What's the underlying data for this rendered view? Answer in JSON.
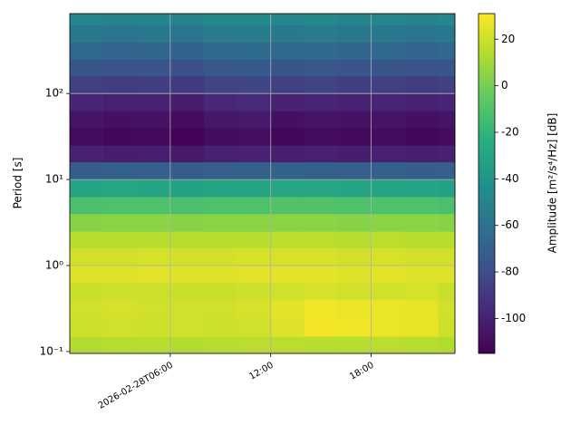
{
  "chart_data": {
    "type": "heatmap",
    "ylabel": "Period [s]",
    "colorbar_label": "Amplitude [m²/s⁴/Hz] [dB]",
    "x": [
      0,
      2,
      4,
      6,
      8,
      10,
      12,
      14,
      16,
      18,
      20,
      22,
      23
    ],
    "y": [
      0.095,
      0.15,
      0.25,
      0.4,
      0.63,
      1,
      1.6,
      2.5,
      4,
      6.3,
      10,
      16,
      25,
      40,
      63,
      100,
      160,
      250,
      400,
      630,
      850
    ],
    "xlim": [
      0,
      23
    ],
    "ylim": [
      0.095,
      850
    ],
    "log_y": true,
    "grid": true,
    "xticks": [
      {
        "value": 6,
        "label": "2026-02-28T06:00"
      },
      {
        "value": 12,
        "label": "12:00"
      },
      {
        "value": 18,
        "label": "18:00"
      }
    ],
    "yticks": [
      {
        "value": 0.1,
        "label": "10⁻¹"
      },
      {
        "value": 1,
        "label": "10⁰"
      },
      {
        "value": 10,
        "label": "10¹"
      },
      {
        "value": 100,
        "label": "10²"
      }
    ],
    "clim": [
      -115,
      31
    ],
    "cticks": [
      -100,
      -80,
      -60,
      -40,
      -20,
      0,
      20
    ],
    "colormap": [
      "#440154",
      "#482878",
      "#3b528b",
      "#2c728e",
      "#21918c",
      "#28ae80",
      "#5ec962",
      "#addc30",
      "#fde725"
    ],
    "values": [
      [
        14,
        15,
        15,
        14,
        15,
        16,
        16,
        15,
        15,
        16,
        15,
        14
      ],
      [
        20,
        21,
        20,
        21,
        20,
        21,
        24,
        29,
        28,
        27,
        26,
        20
      ],
      [
        21,
        22,
        21,
        21,
        21,
        22,
        25,
        28,
        27,
        27,
        26,
        21
      ],
      [
        19,
        20,
        20,
        19,
        19,
        20,
        21,
        22,
        21,
        21,
        22,
        19
      ],
      [
        24,
        24,
        25,
        24,
        24,
        25,
        25,
        25,
        24,
        25,
        24,
        24
      ],
      [
        21,
        21,
        22,
        21,
        21,
        22,
        22,
        22,
        21,
        22,
        21,
        21
      ],
      [
        15,
        15,
        15,
        15,
        15,
        15,
        16,
        16,
        15,
        16,
        15,
        15
      ],
      [
        4,
        5,
        5,
        4,
        5,
        5,
        5,
        5,
        4,
        5,
        5,
        4
      ],
      [
        -12,
        -11,
        -11,
        -12,
        -11,
        -11,
        -10,
        -10,
        -11,
        -11,
        -11,
        -12
      ],
      [
        -30,
        -29,
        -30,
        -31,
        -30,
        -30,
        -29,
        -29,
        -30,
        -30,
        -30,
        -31
      ],
      [
        -72,
        -70,
        -71,
        -73,
        -71,
        -70,
        -69,
        -70,
        -71,
        -70,
        -72,
        -71
      ],
      [
        -100,
        -102,
        -101,
        -104,
        -100,
        -99,
        -101,
        -100,
        -102,
        -100,
        -101,
        -100
      ],
      [
        -110,
        -112,
        -111,
        -114,
        -110,
        -109,
        -112,
        -110,
        -111,
        -110,
        -112,
        -110
      ],
      [
        -106,
        -108,
        -107,
        -110,
        -105,
        -104,
        -108,
        -106,
        -107,
        -106,
        -108,
        -106
      ],
      [
        -98,
        -100,
        -99,
        -102,
        -97,
        -96,
        -99,
        -98,
        -99,
        -98,
        -100,
        -98
      ],
      [
        -86,
        -88,
        -87,
        -89,
        -85,
        -84,
        -86,
        -85,
        -87,
        -86,
        -88,
        -86
      ],
      [
        -76,
        -78,
        -77,
        -79,
        -75,
        -74,
        -76,
        -75,
        -77,
        -76,
        -78,
        -76
      ],
      [
        -66,
        -68,
        -67,
        -69,
        -65,
        -64,
        -66,
        -65,
        -67,
        -66,
        -68,
        -66
      ],
      [
        -56,
        -58,
        -57,
        -58,
        -55,
        -54,
        -56,
        -55,
        -57,
        -56,
        -58,
        -56
      ],
      [
        -48,
        -50,
        -49,
        -50,
        -47,
        -46,
        -48,
        -47,
        -49,
        -48,
        -50,
        -48
      ]
    ]
  }
}
